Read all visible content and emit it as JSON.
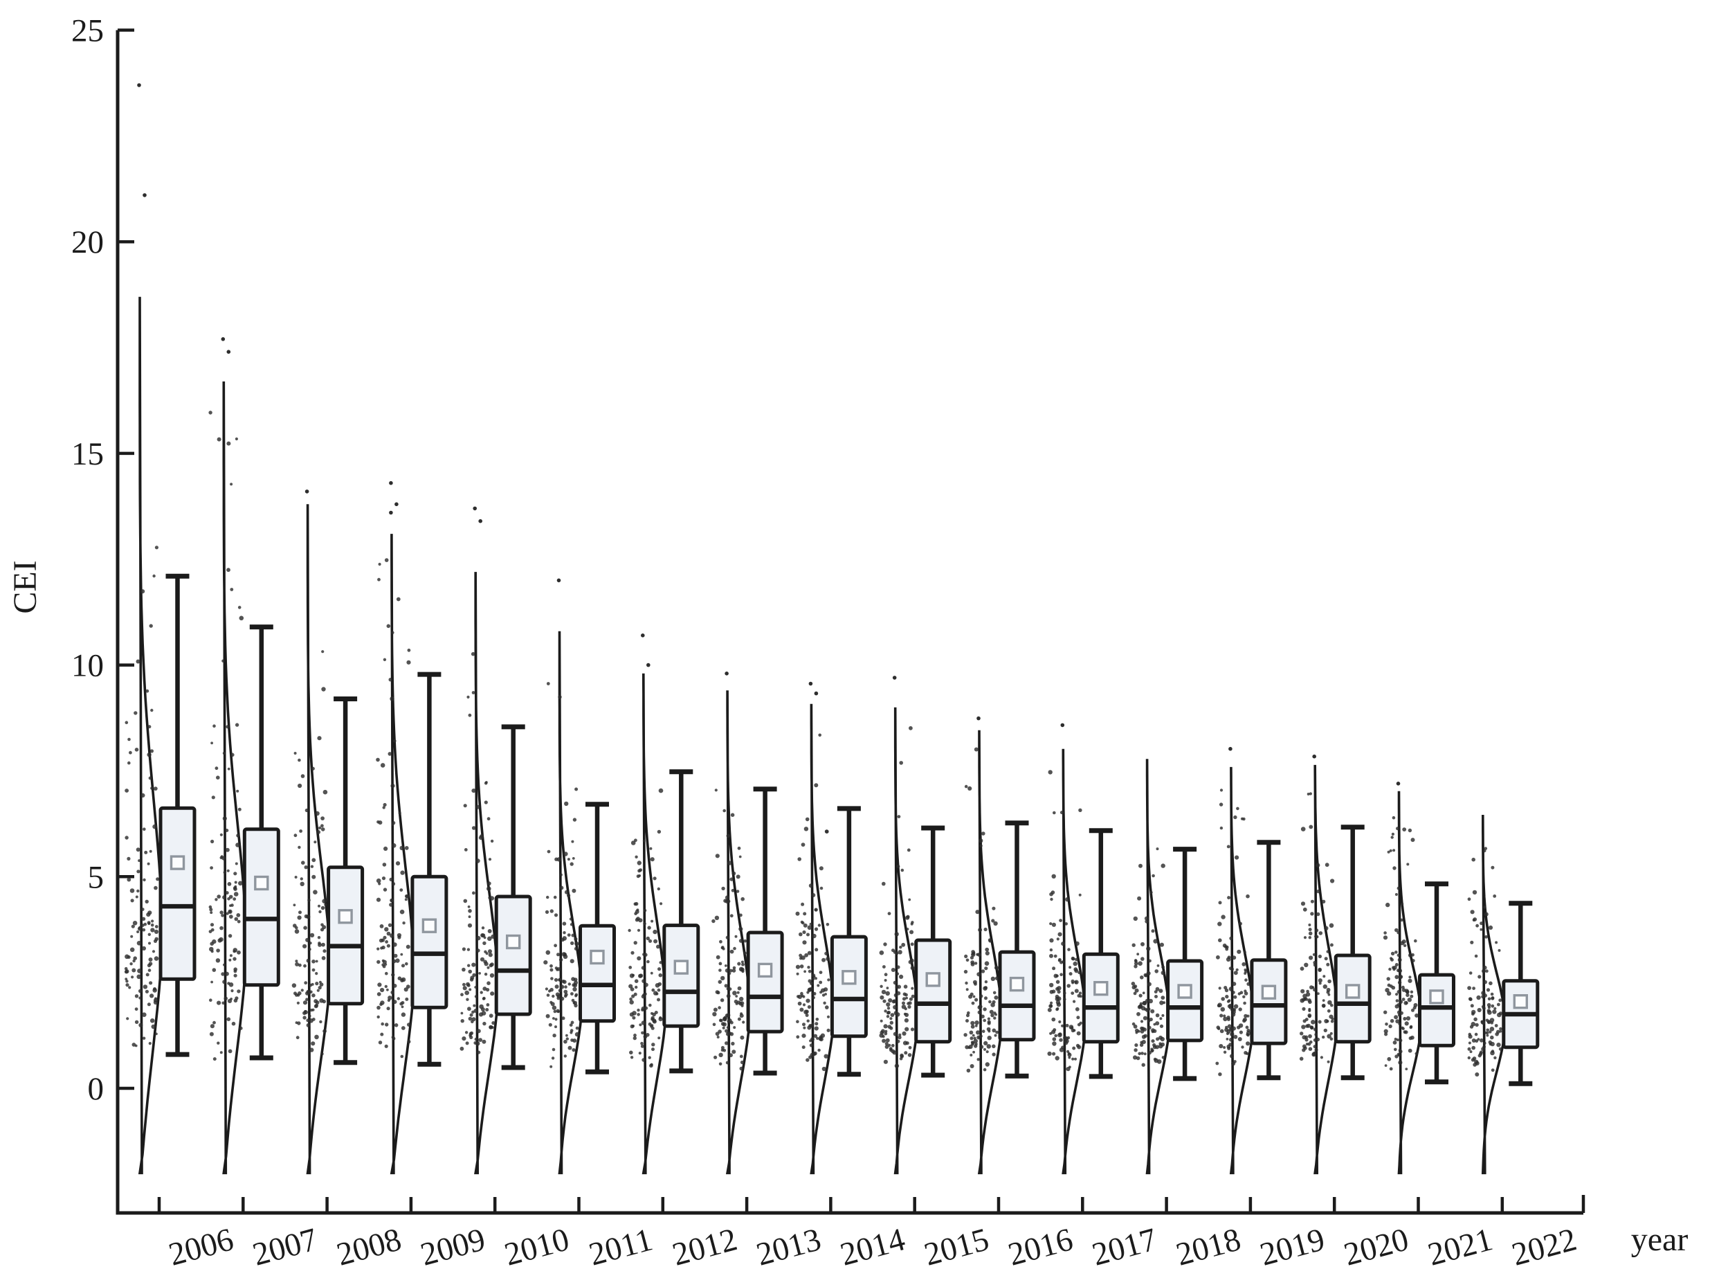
{
  "chart_data": {
    "type": "violin-box",
    "title": "",
    "xlabel": "year",
    "ylabel": "CEI",
    "ylim": [
      0,
      25
    ],
    "y_ticks": [
      0,
      5,
      10,
      15,
      20,
      25
    ],
    "grid": false,
    "legend": "none",
    "violin_side": "right-half",
    "violin_tail": -2.0,
    "mean_marker": "open-square",
    "scatter_count": 115,
    "colors": {
      "ink": "#1b1b1b",
      "box_fill": "#eef2f7",
      "dot": "#2e2e2e",
      "mean_stroke": "#8f969e"
    },
    "categories": [
      "2006",
      "2007",
      "2008",
      "2009",
      "2010",
      "2011",
      "2012",
      "2013",
      "2014",
      "2015",
      "2016",
      "2017",
      "2018",
      "2019",
      "2020",
      "2021",
      "2022"
    ],
    "years": [
      {
        "year": "2006",
        "whisker_low": 0.8,
        "q1": 2.58,
        "median": 4.3,
        "mean": 5.33,
        "q3": 6.62,
        "whisker_high": 12.1,
        "violin_top": 18.7,
        "outliers": [
          23.7,
          21.1
        ]
      },
      {
        "year": "2007",
        "whisker_low": 0.72,
        "q1": 2.44,
        "median": 4.0,
        "mean": 4.85,
        "q3": 6.12,
        "whisker_high": 10.9,
        "violin_top": 16.7,
        "outliers": [
          17.7,
          17.4
        ]
      },
      {
        "year": "2008",
        "whisker_low": 0.61,
        "q1": 2.0,
        "median": 3.36,
        "mean": 4.06,
        "q3": 5.22,
        "whisker_high": 9.2,
        "violin_top": 13.8,
        "outliers": [
          14.1
        ]
      },
      {
        "year": "2009",
        "whisker_low": 0.57,
        "q1": 1.91,
        "median": 3.18,
        "mean": 3.84,
        "q3": 5.0,
        "whisker_high": 9.78,
        "violin_top": 13.1,
        "outliers": [
          14.3,
          13.8,
          13.6
        ]
      },
      {
        "year": "2010",
        "whisker_low": 0.49,
        "q1": 1.75,
        "median": 2.78,
        "mean": 3.46,
        "q3": 4.53,
        "whisker_high": 8.54,
        "violin_top": 12.2,
        "outliers": [
          13.7,
          13.4
        ]
      },
      {
        "year": "2011",
        "whisker_low": 0.39,
        "q1": 1.59,
        "median": 2.44,
        "mean": 3.1,
        "q3": 3.84,
        "whisker_high": 6.71,
        "violin_top": 10.8,
        "outliers": [
          12.0
        ]
      },
      {
        "year": "2012",
        "whisker_low": 0.41,
        "q1": 1.47,
        "median": 2.28,
        "mean": 2.86,
        "q3": 3.85,
        "whisker_high": 7.48,
        "violin_top": 9.8,
        "outliers": [
          10.7,
          10.0
        ]
      },
      {
        "year": "2013",
        "whisker_low": 0.36,
        "q1": 1.34,
        "median": 2.16,
        "mean": 2.79,
        "q3": 3.68,
        "whisker_high": 7.07,
        "violin_top": 9.4,
        "outliers": [
          9.8
        ]
      },
      {
        "year": "2014",
        "whisker_low": 0.33,
        "q1": 1.23,
        "median": 2.11,
        "mean": 2.62,
        "q3": 3.58,
        "whisker_high": 6.61,
        "violin_top": 9.08,
        "outliers": [
          9.56,
          9.33
        ]
      },
      {
        "year": "2015",
        "whisker_low": 0.31,
        "q1": 1.1,
        "median": 2.0,
        "mean": 2.57,
        "q3": 3.5,
        "whisker_high": 6.15,
        "violin_top": 9.0,
        "outliers": [
          9.7
        ]
      },
      {
        "year": "2016",
        "whisker_low": 0.29,
        "q1": 1.15,
        "median": 1.95,
        "mean": 2.46,
        "q3": 3.22,
        "whisker_high": 6.27,
        "violin_top": 8.46,
        "outliers": [
          8.74
        ]
      },
      {
        "year": "2017",
        "whisker_low": 0.28,
        "q1": 1.1,
        "median": 1.91,
        "mean": 2.36,
        "q3": 3.17,
        "whisker_high": 6.09,
        "violin_top": 8.02,
        "outliers": [
          8.58
        ]
      },
      {
        "year": "2018",
        "whisker_low": 0.23,
        "q1": 1.13,
        "median": 1.91,
        "mean": 2.29,
        "q3": 3.01,
        "whisker_high": 5.65,
        "violin_top": 7.78,
        "outliers": []
      },
      {
        "year": "2019",
        "whisker_low": 0.25,
        "q1": 1.06,
        "median": 1.96,
        "mean": 2.27,
        "q3": 3.03,
        "whisker_high": 5.81,
        "violin_top": 7.59,
        "outliers": [
          8.02
        ]
      },
      {
        "year": "2020",
        "whisker_low": 0.25,
        "q1": 1.1,
        "median": 2.0,
        "mean": 2.29,
        "q3": 3.14,
        "whisker_high": 6.17,
        "violin_top": 7.64,
        "outliers": [
          7.84
        ]
      },
      {
        "year": "2021",
        "whisker_low": 0.15,
        "q1": 1.01,
        "median": 1.91,
        "mean": 2.16,
        "q3": 2.68,
        "whisker_high": 4.83,
        "violin_top": 7.02,
        "outliers": [
          7.2
        ]
      },
      {
        "year": "2022",
        "whisker_low": 0.11,
        "q1": 0.97,
        "median": 1.75,
        "mean": 2.05,
        "q3": 2.54,
        "whisker_high": 4.37,
        "violin_top": 6.46,
        "outliers": []
      }
    ]
  }
}
